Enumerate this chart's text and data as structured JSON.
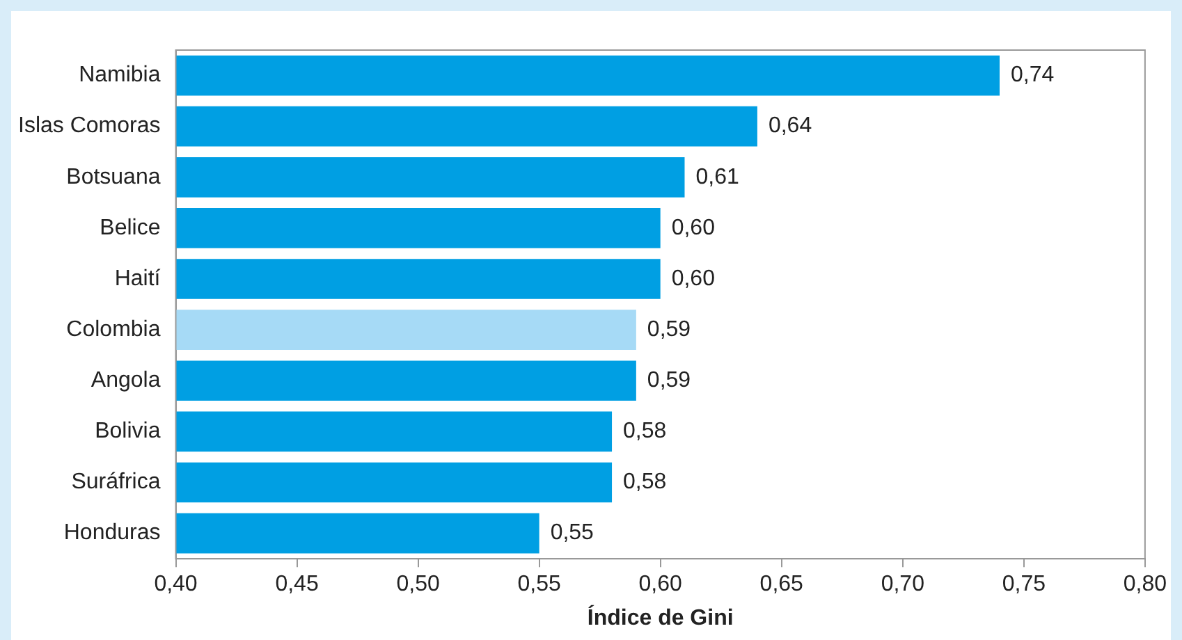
{
  "chart_data": {
    "type": "bar",
    "orientation": "horizontal",
    "xlabel": "Índice de Gini",
    "categories": [
      "Namibia",
      "Islas Comoras",
      "Botsuana",
      "Belice",
      "Haití",
      "Colombia",
      "Angola",
      "Bolivia",
      "Suráfrica",
      "Honduras"
    ],
    "values": [
      0.74,
      0.64,
      0.61,
      0.6,
      0.6,
      0.59,
      0.59,
      0.58,
      0.58,
      0.55
    ],
    "value_labels": [
      "0,74",
      "0,64",
      "0,61",
      "0,60",
      "0,60",
      "0,59",
      "0,59",
      "0,58",
      "0,58",
      "0,55"
    ],
    "colors": [
      "#009fe3",
      "#009fe3",
      "#009fe3",
      "#009fe3",
      "#009fe3",
      "#a6daf6",
      "#009fe3",
      "#009fe3",
      "#009fe3",
      "#009fe3"
    ],
    "xlim": [
      0.4,
      0.8
    ],
    "xticks": [
      {
        "value": 0.4,
        "label": "0,40"
      },
      {
        "value": 0.45,
        "label": "0,45"
      },
      {
        "value": 0.5,
        "label": "0,50"
      },
      {
        "value": 0.55,
        "label": "0,55"
      },
      {
        "value": 0.6,
        "label": "0,60"
      },
      {
        "value": 0.65,
        "label": "0,65"
      },
      {
        "value": 0.7,
        "label": "0,70"
      },
      {
        "value": 0.75,
        "label": "0,75"
      },
      {
        "value": 0.8,
        "label": "0,80"
      }
    ],
    "grid": false,
    "legend": false
  }
}
